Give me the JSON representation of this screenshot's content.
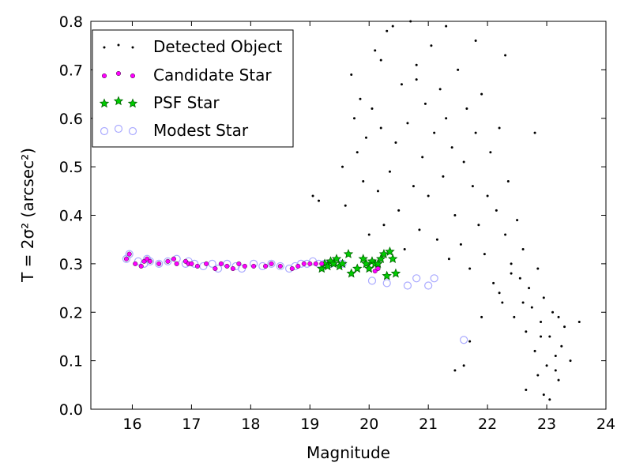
{
  "chart_data": {
    "type": "scatter",
    "title": "",
    "xlabel": "Magnitude",
    "ylabel": "T = 2σ² (arcsec²)",
    "xlim": [
      15.3,
      24.0
    ],
    "ylim": [
      0.0,
      0.8
    ],
    "x_ticks": [
      "16",
      "17",
      "18",
      "19",
      "20",
      "21",
      "22",
      "23",
      "24"
    ],
    "y_ticks": [
      "0.0",
      "0.1",
      "0.2",
      "0.3",
      "0.4",
      "0.5",
      "0.6",
      "0.7",
      "0.8"
    ],
    "grid": false,
    "legend_position": "top-left",
    "series": [
      {
        "name": "Detected Object",
        "marker": "dot",
        "color": "#000000",
        "x": [
          19.05,
          19.15,
          19.55,
          19.6,
          19.7,
          19.75,
          19.8,
          19.85,
          19.9,
          19.95,
          20.0,
          20.05,
          20.1,
          20.15,
          20.2,
          20.25,
          20.3,
          20.35,
          20.4,
          20.45,
          20.5,
          20.55,
          20.6,
          20.65,
          20.7,
          20.75,
          20.8,
          20.85,
          20.9,
          20.95,
          21.0,
          21.05,
          21.1,
          21.15,
          21.2,
          21.25,
          21.3,
          21.35,
          21.4,
          21.45,
          21.5,
          21.55,
          21.6,
          21.65,
          21.7,
          21.75,
          21.8,
          21.85,
          21.9,
          21.95,
          22.0,
          22.05,
          22.1,
          22.15,
          22.2,
          22.25,
          22.3,
          22.35,
          22.4,
          22.45,
          22.5,
          22.55,
          22.6,
          22.65,
          22.7,
          22.75,
          22.8,
          22.85,
          22.9,
          22.95,
          23.0,
          23.05,
          23.1,
          23.15,
          23.2,
          23.25,
          23.3,
          23.4,
          23.55,
          22.95,
          23.05,
          23.15,
          22.85,
          22.65,
          21.6,
          21.45,
          21.7,
          21.9,
          22.2,
          22.4,
          22.6,
          22.9,
          23.2,
          20.2,
          20.8,
          21.3,
          21.8,
          22.3,
          22.8
        ],
        "y": [
          0.44,
          0.43,
          0.5,
          0.42,
          0.69,
          0.6,
          0.53,
          0.64,
          0.47,
          0.56,
          0.36,
          0.62,
          0.74,
          0.45,
          0.58,
          0.38,
          0.78,
          0.49,
          0.79,
          0.55,
          0.41,
          0.67,
          0.33,
          0.59,
          0.8,
          0.46,
          0.71,
          0.37,
          0.52,
          0.63,
          0.44,
          0.75,
          0.57,
          0.35,
          0.66,
          0.48,
          0.6,
          0.31,
          0.54,
          0.4,
          0.7,
          0.34,
          0.51,
          0.62,
          0.29,
          0.46,
          0.57,
          0.38,
          0.65,
          0.32,
          0.44,
          0.53,
          0.26,
          0.41,
          0.58,
          0.22,
          0.36,
          0.47,
          0.3,
          0.19,
          0.39,
          0.27,
          0.33,
          0.16,
          0.25,
          0.21,
          0.12,
          0.29,
          0.18,
          0.23,
          0.09,
          0.15,
          0.2,
          0.11,
          0.06,
          0.13,
          0.17,
          0.1,
          0.18,
          0.03,
          0.02,
          0.08,
          0.07,
          0.04,
          0.09,
          0.08,
          0.14,
          0.19,
          0.24,
          0.28,
          0.22,
          0.15,
          0.19,
          0.72,
          0.68,
          0.79,
          0.76,
          0.73,
          0.57
        ]
      },
      {
        "name": "Candidate Star",
        "marker": "circle-small",
        "color": "#ff00ff",
        "x": [
          15.9,
          15.95,
          16.05,
          16.15,
          16.2,
          16.25,
          16.3,
          16.45,
          16.6,
          16.7,
          16.75,
          16.9,
          16.95,
          17.0,
          17.1,
          17.25,
          17.4,
          17.5,
          17.6,
          17.7,
          17.8,
          17.9,
          18.05,
          18.25,
          18.35,
          18.5,
          18.7,
          18.8,
          18.9,
          19.0,
          19.1,
          19.2,
          20.1,
          20.15
        ],
        "y": [
          0.31,
          0.32,
          0.3,
          0.295,
          0.305,
          0.31,
          0.305,
          0.3,
          0.305,
          0.31,
          0.3,
          0.305,
          0.3,
          0.3,
          0.295,
          0.3,
          0.29,
          0.3,
          0.295,
          0.29,
          0.3,
          0.295,
          0.295,
          0.295,
          0.3,
          0.295,
          0.29,
          0.295,
          0.3,
          0.3,
          0.3,
          0.3,
          0.285,
          0.29
        ]
      },
      {
        "name": "PSF Star",
        "marker": "star",
        "color": "#00cc00",
        "x": [
          19.2,
          19.25,
          19.3,
          19.35,
          19.4,
          19.45,
          19.5,
          19.55,
          19.65,
          19.7,
          19.8,
          19.9,
          19.95,
          20.0,
          20.05,
          20.1,
          20.15,
          20.2,
          20.25,
          20.3,
          20.35,
          20.4,
          20.45
        ],
        "y": [
          0.29,
          0.3,
          0.295,
          0.305,
          0.3,
          0.31,
          0.295,
          0.3,
          0.32,
          0.28,
          0.29,
          0.31,
          0.3,
          0.29,
          0.305,
          0.3,
          0.3,
          0.31,
          0.32,
          0.275,
          0.325,
          0.31,
          0.28
        ]
      },
      {
        "name": "Modest Star",
        "marker": "circle-open",
        "color": "#aaaaff",
        "x": [
          15.9,
          15.95,
          16.1,
          16.2,
          16.25,
          16.3,
          16.45,
          16.6,
          16.75,
          16.9,
          16.95,
          17.05,
          17.2,
          17.35,
          17.45,
          17.6,
          17.75,
          17.85,
          18.05,
          18.2,
          18.35,
          18.5,
          18.65,
          18.75,
          18.85,
          18.95,
          19.05,
          19.15,
          19.25,
          19.35,
          19.45,
          19.55,
          20.05,
          20.3,
          20.65,
          20.8,
          21.0,
          21.1,
          21.6
        ],
        "y": [
          0.31,
          0.32,
          0.305,
          0.3,
          0.31,
          0.305,
          0.3,
          0.305,
          0.31,
          0.3,
          0.305,
          0.3,
          0.295,
          0.3,
          0.29,
          0.3,
          0.295,
          0.29,
          0.3,
          0.295,
          0.3,
          0.295,
          0.29,
          0.295,
          0.3,
          0.3,
          0.305,
          0.3,
          0.3,
          0.3,
          0.305,
          0.3,
          0.265,
          0.26,
          0.255,
          0.27,
          0.255,
          0.27,
          0.143
        ]
      }
    ]
  }
}
